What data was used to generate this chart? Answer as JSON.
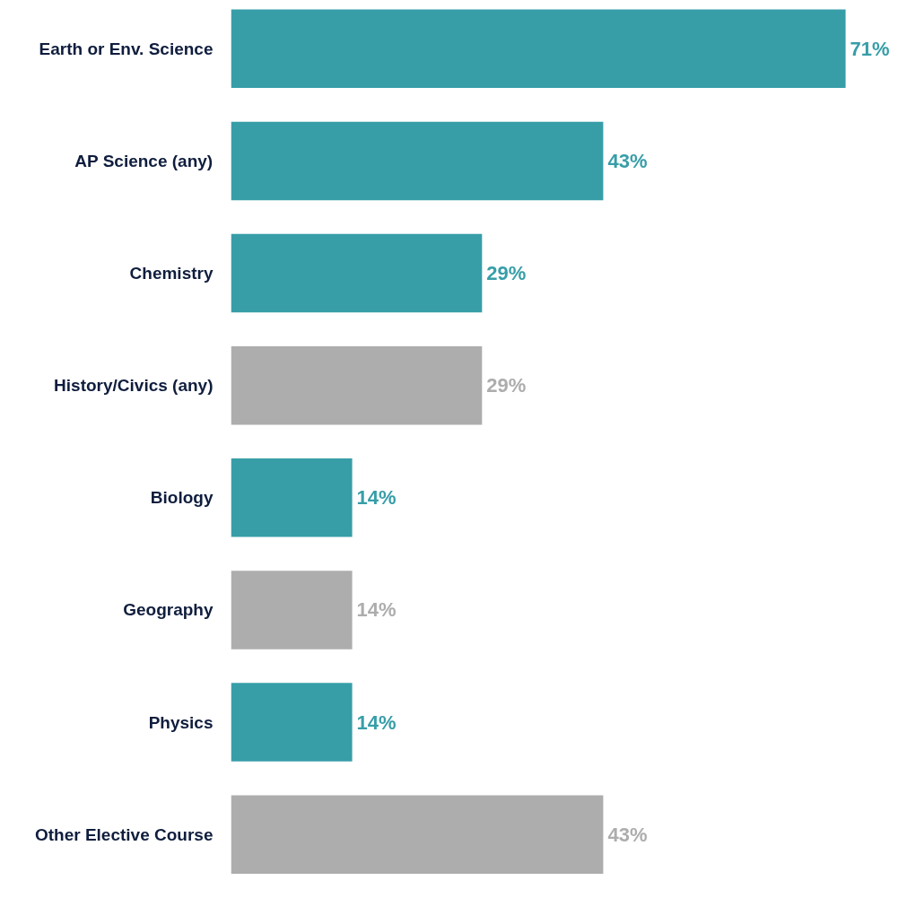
{
  "chart_data": {
    "type": "bar",
    "orientation": "horizontal",
    "categories": [
      "Earth or Env. Science",
      "AP Science (any)",
      "Chemistry",
      "History/Civics (any)",
      "Biology",
      "Geography",
      "Physics",
      "Other Elective Course"
    ],
    "values": [
      71,
      43,
      29,
      29,
      14,
      14,
      14,
      43
    ],
    "colors": [
      "#379ea8",
      "#379ea8",
      "#379ea8",
      "#adadad",
      "#379ea8",
      "#adadad",
      "#379ea8",
      "#adadad"
    ],
    "value_labels": [
      "71%",
      "43%",
      "29%",
      "29%",
      "14%",
      "14%",
      "14%",
      "43%"
    ],
    "grid": false
  }
}
